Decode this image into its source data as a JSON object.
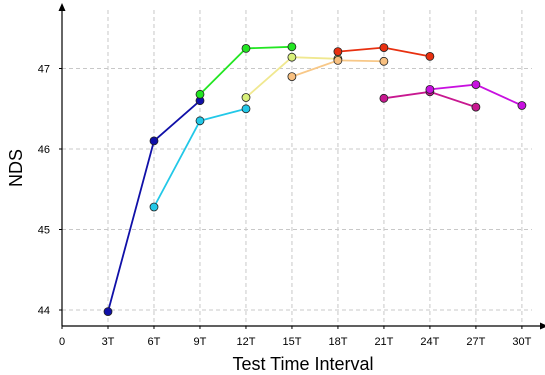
{
  "chart_data": {
    "type": "line",
    "xlabel": "Test Time Interval",
    "ylabel": "NDS",
    "x_ticks": [
      0,
      3,
      6,
      9,
      12,
      15,
      18,
      21,
      24,
      27,
      30
    ],
    "x_tick_labels": [
      "0",
      "3T",
      "6T",
      "9T",
      "12T",
      "15T",
      "18T",
      "21T",
      "24T",
      "27T",
      "30T"
    ],
    "y_ticks": [
      44,
      45,
      46,
      47
    ],
    "y_tick_labels": [
      "44",
      "45",
      "46",
      "47"
    ],
    "xlim": [
      0,
      31
    ],
    "ylim": [
      43.8,
      47.5
    ],
    "grid": true,
    "series": [
      {
        "color": "#1010a8",
        "marker_color": "#1010a8",
        "points": [
          [
            3,
            43.98
          ],
          [
            6,
            46.1
          ],
          [
            9,
            46.6
          ]
        ]
      },
      {
        "color": "#22c8e8",
        "marker_color": "#22c8e8",
        "points": [
          [
            6,
            45.28
          ],
          [
            9,
            46.35
          ],
          [
            12,
            46.5
          ]
        ]
      },
      {
        "color": "#22e622",
        "marker_color": "#22e622",
        "points": [
          [
            9,
            46.68
          ],
          [
            12,
            47.25
          ],
          [
            15,
            47.27
          ]
        ]
      },
      {
        "color": "#f0e890",
        "marker_color": "#d8f07a",
        "points": [
          [
            12,
            46.64
          ],
          [
            15,
            47.14
          ],
          [
            18,
            47.12
          ]
        ]
      },
      {
        "color": "#f8c888",
        "marker_color": "#f8c080",
        "points": [
          [
            15,
            46.9
          ],
          [
            18,
            47.1
          ],
          [
            21,
            47.09
          ]
        ]
      },
      {
        "color": "#e83010",
        "marker_color": "#e83010",
        "points": [
          [
            18,
            47.21
          ],
          [
            21,
            47.26
          ],
          [
            24,
            47.15
          ]
        ]
      },
      {
        "color": "#c81890",
        "marker_color": "#c81890",
        "points": [
          [
            21,
            46.63
          ],
          [
            24,
            46.71
          ],
          [
            27,
            46.52
          ]
        ]
      },
      {
        "color": "#c810e0",
        "marker_color": "#c810e0",
        "points": [
          [
            24,
            46.74
          ],
          [
            27,
            46.8
          ],
          [
            30,
            46.54
          ]
        ]
      }
    ]
  }
}
